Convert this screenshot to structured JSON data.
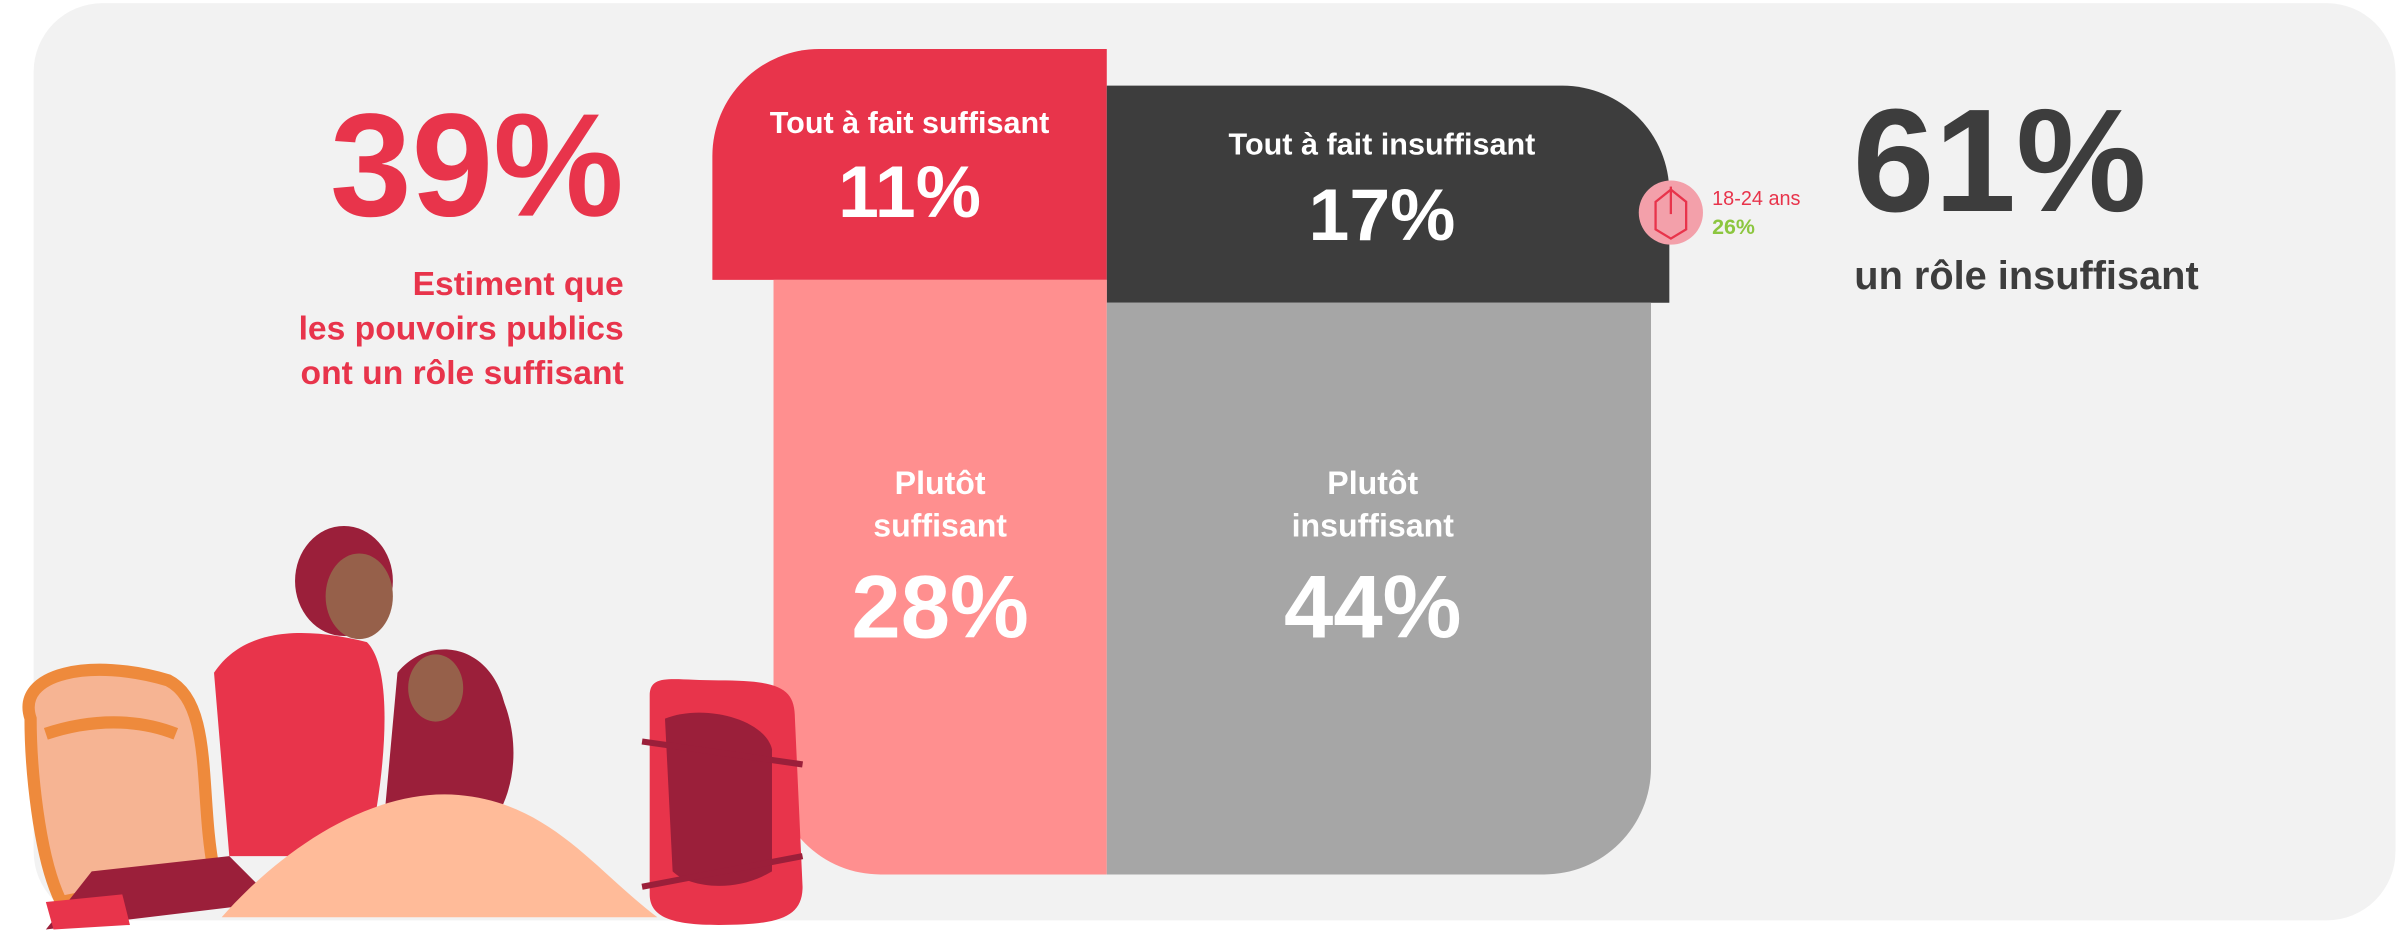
{
  "left_summary": {
    "value": "39%",
    "lines": [
      "Estiment que",
      "les pouvoirs publics",
      "ont un rôle suffisant"
    ]
  },
  "right_summary": {
    "value": "61%",
    "label": "un rôle insuffisant"
  },
  "blocks": [
    {
      "label": [
        "Tout à fait suffisant"
      ],
      "value": "11%"
    },
    {
      "label": [
        "Tout à fait insuffisant"
      ],
      "value": "17%"
    },
    {
      "label": [
        "Plutôt",
        "suffisant"
      ],
      "value": "28%"
    },
    {
      "label": [
        "Plutôt",
        "insuffisant"
      ],
      "value": "44%"
    }
  ],
  "callout": {
    "label": "18-24 ans",
    "value": "26%"
  }
}
